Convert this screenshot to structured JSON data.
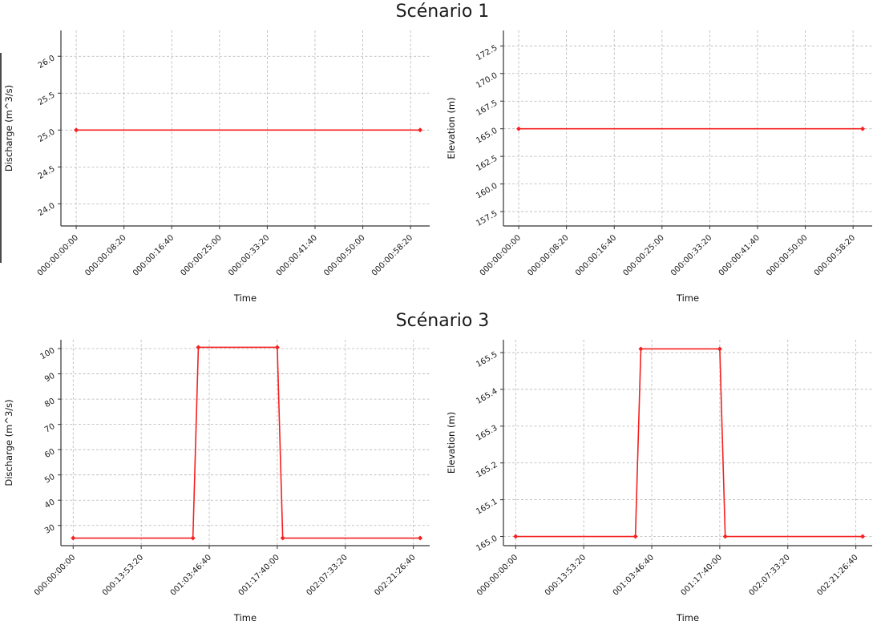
{
  "page": {
    "row1_title": "Scénario 1",
    "row2_title": "Scénario 3"
  },
  "colors": {
    "line": "#f52020",
    "grid": "#b5b5b5",
    "spine": "#333333"
  },
  "chart_data": [
    {
      "id": "scenario1-discharge",
      "type": "line",
      "grid": true,
      "xlabel": "Time",
      "ylabel": "Discharge (m^3/s)",
      "xlim": [
        -160,
        3700
      ],
      "ylim": [
        23.7,
        26.35
      ],
      "x_tick_values": [
        0,
        500,
        1000,
        1500,
        2000,
        2500,
        3000,
        3500
      ],
      "x_tick_labels": [
        "000:00:00:00",
        "000:00:08:20",
        "000:00:16:40",
        "000:00:25:00",
        "000:00:33:20",
        "000:00:41:40",
        "000:00:50:00",
        "000:00:58:20"
      ],
      "y_tick_values": [
        24.0,
        24.5,
        25.0,
        25.5,
        26.0
      ],
      "y_tick_labels": [
        "24.0",
        "24.5",
        "25.0",
        "25.5",
        "26.0"
      ],
      "series": [
        {
          "name": "Discharge",
          "color": "#f52020",
          "x": [
            0,
            3600
          ],
          "y": [
            25.0,
            25.0
          ]
        }
      ]
    },
    {
      "id": "scenario1-elevation",
      "type": "line",
      "grid": true,
      "xlabel": "Time",
      "ylabel": "Elevation (m)",
      "xlim": [
        -160,
        3700
      ],
      "ylim": [
        156.2,
        173.9
      ],
      "x_tick_values": [
        0,
        500,
        1000,
        1500,
        2000,
        2500,
        3000,
        3500
      ],
      "x_tick_labels": [
        "000:00:00:00",
        "000:00:08:20",
        "000:00:16:40",
        "000:00:25:00",
        "000:00:33:20",
        "000:00:41:40",
        "000:00:50:00",
        "000:00:58:20"
      ],
      "y_tick_values": [
        157.5,
        160.0,
        162.5,
        165.0,
        167.5,
        170.0,
        172.5
      ],
      "y_tick_labels": [
        "157.5",
        "160.0",
        "162.5",
        "165.0",
        "167.5",
        "170.0",
        "172.5"
      ],
      "series": [
        {
          "name": "Elevation",
          "color": "#f52020",
          "x": [
            0,
            3600
          ],
          "y": [
            165.0,
            165.0
          ]
        }
      ]
    },
    {
      "id": "scenario3-discharge",
      "type": "line",
      "grid": true,
      "xlabel": "Time",
      "ylabel": "Discharge (m^3/s)",
      "xlim": [
        -9000,
        262000
      ],
      "ylim": [
        22,
        103.5
      ],
      "x_tick_values": [
        0,
        50000,
        100000,
        150000,
        200000,
        250000
      ],
      "x_tick_labels": [
        "000:00:00:00",
        "000:13:53:20",
        "001:03:46:40",
        "001:17:40:00",
        "002:07:33:20",
        "002:21:26:40"
      ],
      "y_tick_values": [
        30,
        40,
        50,
        60,
        70,
        80,
        90,
        100
      ],
      "y_tick_labels": [
        "30",
        "40",
        "50",
        "60",
        "70",
        "80",
        "90",
        "100"
      ],
      "series": [
        {
          "name": "Discharge",
          "color": "#f52020",
          "x": [
            0,
            88000,
            92000,
            150000,
            154000,
            255000
          ],
          "y": [
            25,
            25,
            100.5,
            100.5,
            25,
            25
          ]
        }
      ]
    },
    {
      "id": "scenario3-elevation",
      "type": "line",
      "grid": true,
      "xlabel": "Time",
      "ylabel": "Elevation (m)",
      "xlim": [
        -9000,
        262000
      ],
      "ylim": [
        164.975,
        165.535
      ],
      "x_tick_values": [
        0,
        50000,
        100000,
        150000,
        200000,
        250000
      ],
      "x_tick_labels": [
        "000:00:00:00",
        "000:13:53:20",
        "001:03:46:40",
        "001:17:40:00",
        "002:07:33:20",
        "002:21:26:40"
      ],
      "y_tick_values": [
        165.0,
        165.1,
        165.2,
        165.3,
        165.4,
        165.5
      ],
      "y_tick_labels": [
        "165.0",
        "165.1",
        "165.2",
        "165.3",
        "165.4",
        "165.5"
      ],
      "series": [
        {
          "name": "Elevation",
          "color": "#f52020",
          "x": [
            0,
            88000,
            92000,
            150000,
            154000,
            255000
          ],
          "y": [
            165.0,
            165.0,
            165.51,
            165.51,
            165.0,
            165.0
          ]
        }
      ]
    }
  ]
}
